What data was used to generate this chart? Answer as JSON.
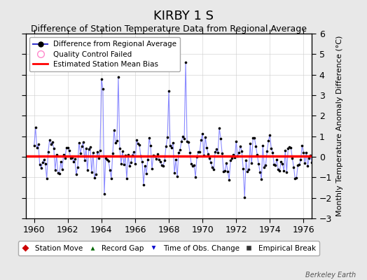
{
  "title": "KIRBY 1 S",
  "subtitle": "Difference of Station Temperature Data from Regional Average",
  "ylabel": "Monthly Temperature Anomaly Difference (°C)",
  "xlim": [
    1959.5,
    1976.5
  ],
  "ylim": [
    -3,
    6
  ],
  "yticks": [
    -3,
    -2,
    -1,
    0,
    1,
    2,
    3,
    4,
    5,
    6
  ],
  "xticks": [
    1960,
    1962,
    1964,
    1966,
    1968,
    1970,
    1972,
    1974,
    1976
  ],
  "bias": 0.05,
  "line_color": "#7777ff",
  "line_color_dark": "#0000cc",
  "marker_color": "#000000",
  "bias_color": "#ff0000",
  "background_color": "#ffffff",
  "outer_background": "#e8e8e8",
  "grid_color": "#cccccc",
  "watermark": "Berkeley Earth",
  "title_fontsize": 13,
  "subtitle_fontsize": 9,
  "start_year": 1960.0,
  "n_months": 204
}
